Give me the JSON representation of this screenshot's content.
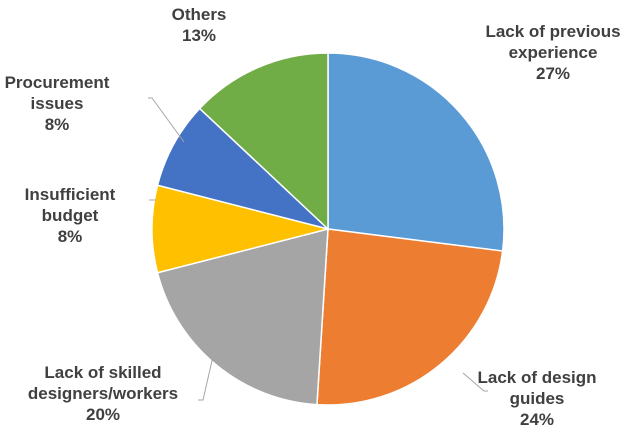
{
  "chart_data": {
    "type": "pie",
    "title": "",
    "legend": "none",
    "slices": [
      {
        "label_lines": [
          "Lack of previous",
          "experience"
        ],
        "percent_label": "27%",
        "value": 27,
        "color": "#5b9bd5"
      },
      {
        "label_lines": [
          "Lack of design",
          "guides"
        ],
        "percent_label": "24%",
        "value": 24,
        "color": "#ed7d31"
      },
      {
        "label_lines": [
          "Lack of skilled",
          "designers/workers"
        ],
        "percent_label": "20%",
        "value": 20,
        "color": "#a5a5a5"
      },
      {
        "label_lines": [
          "Insufficient",
          "budget"
        ],
        "percent_label": "8%",
        "value": 8,
        "color": "#ffc000"
      },
      {
        "label_lines": [
          "Procurement",
          "issues"
        ],
        "percent_label": "8%",
        "value": 8,
        "color": "#4472c4"
      },
      {
        "label_lines": [
          "Others"
        ],
        "percent_label": "13%",
        "value": 13,
        "color": "#70ad47"
      }
    ]
  }
}
